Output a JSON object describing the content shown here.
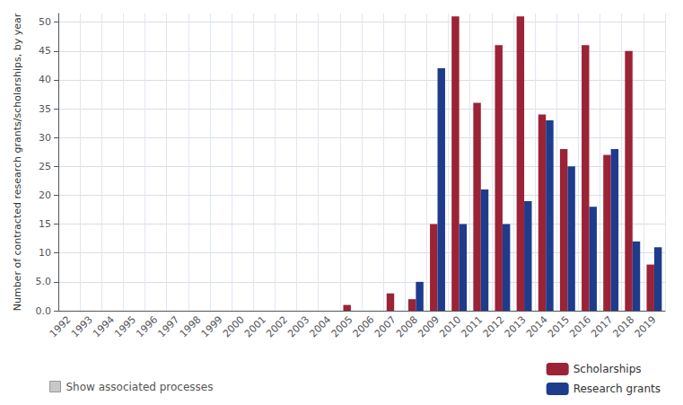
{
  "chart_data": {
    "type": "bar",
    "categories": [
      "1992",
      "1993",
      "1994",
      "1995",
      "1996",
      "1997",
      "1998",
      "1999",
      "2000",
      "2001",
      "2002",
      "2003",
      "2004",
      "2005",
      "2006",
      "2007",
      "2008",
      "2009",
      "2010",
      "2011",
      "2012",
      "2013",
      "2014",
      "2015",
      "2016",
      "2017",
      "2018",
      "2019"
    ],
    "series": [
      {
        "name": "Scholarships",
        "color": "#9B2335",
        "values": [
          0,
          0,
          0,
          0,
          0,
          0,
          0,
          0,
          0,
          0,
          0,
          0,
          0,
          1,
          0,
          3,
          2,
          15,
          51,
          36,
          46,
          51,
          34,
          28,
          46,
          27,
          45,
          8
        ]
      },
      {
        "name": "Research grants",
        "color": "#1F3B8C",
        "values": [
          0,
          0,
          0,
          0,
          0,
          0,
          0,
          0,
          0,
          0,
          0,
          0,
          0,
          0,
          0,
          0,
          5,
          42,
          15,
          21,
          15,
          19,
          33,
          25,
          18,
          28,
          12,
          11
        ]
      }
    ],
    "ylabel": "Number of contracted research grants/scholarships, by year",
    "ylim": [
      0,
      51.5
    ],
    "yticks": [
      {
        "value": 0,
        "label": "0.0"
      },
      {
        "value": 5,
        "label": "5.0"
      },
      10,
      15,
      20,
      25,
      30,
      35,
      40,
      45,
      50
    ],
    "grid": true,
    "legend": "lower right",
    "annotation": "Show associated processes"
  }
}
